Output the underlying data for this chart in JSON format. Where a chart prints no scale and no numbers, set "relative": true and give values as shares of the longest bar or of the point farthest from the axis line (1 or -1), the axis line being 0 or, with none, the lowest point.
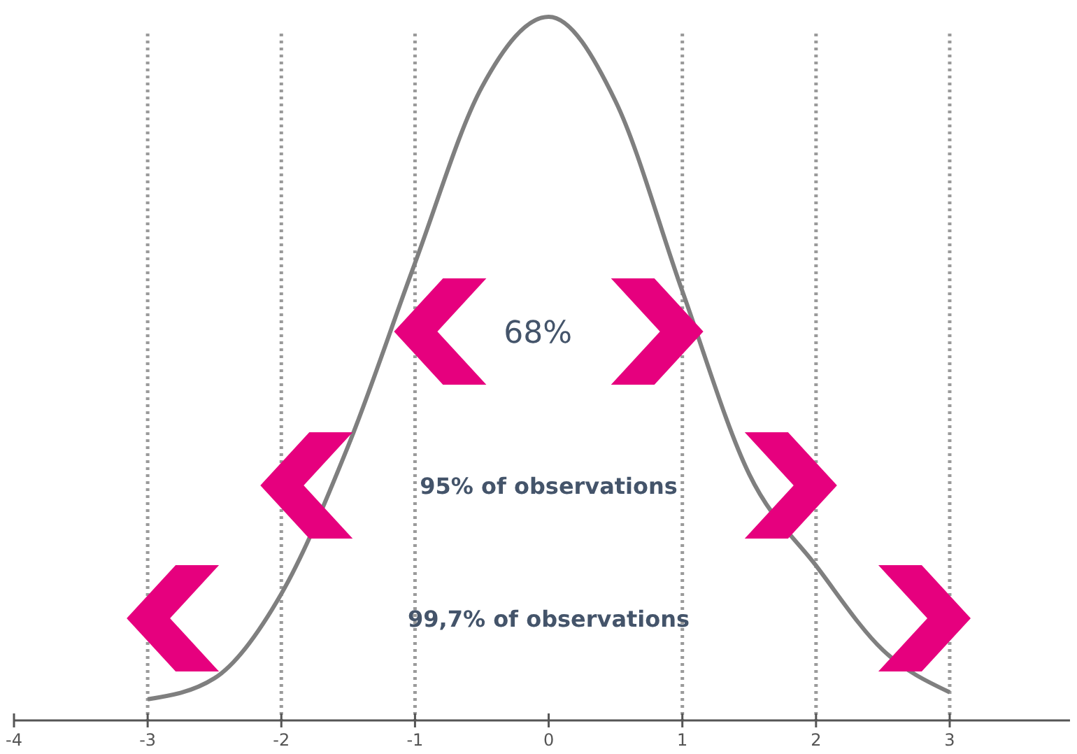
{
  "chart_data": {
    "type": "line",
    "relative": true,
    "x": [
      -3,
      -2.5,
      -2,
      -1.5,
      -1,
      -0.5,
      0,
      0.5,
      1,
      1.5,
      2,
      2.5,
      3
    ],
    "series": [
      {
        "color": "#7f7f7f",
        "values": [
          0.03,
          0.06,
          0.18,
          0.39,
          0.65,
          0.9,
          1,
          0.88,
          0.61,
          0.35,
          0.22,
          0.1,
          0.04
        ]
      }
    ],
    "xlim": [
      -4,
      3.9
    ],
    "xticks": [
      -4,
      -3,
      -2,
      -1,
      0,
      1,
      2,
      3
    ],
    "tick_labels": "x",
    "grid": false,
    "marker": "none",
    "line_style": "solid",
    "ref_lines": [
      {
        "axis": "x",
        "value": -3,
        "color": "#9a9a9a",
        "line_style": "dotted"
      },
      {
        "axis": "x",
        "value": -2,
        "color": "#9a9a9a",
        "line_style": "dotted"
      },
      {
        "axis": "x",
        "value": -1,
        "color": "#9a9a9a",
        "line_style": "dotted"
      },
      {
        "axis": "x",
        "value": 1,
        "color": "#9a9a9a",
        "line_style": "dotted"
      },
      {
        "axis": "x",
        "value": 2,
        "color": "#9a9a9a",
        "line_style": "dotted"
      },
      {
        "axis": "x",
        "value": 3,
        "color": "#9a9a9a",
        "line_style": "dotted"
      }
    ],
    "annotations": [
      "68%",
      "95% of observations",
      "99,7% of observations"
    ]
  }
}
